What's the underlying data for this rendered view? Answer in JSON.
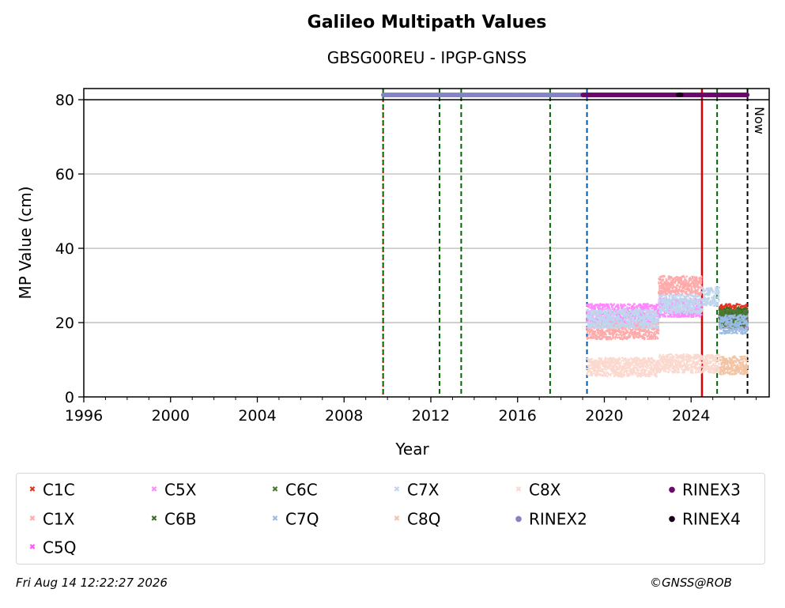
{
  "chart_data": {
    "type": "scatter",
    "title": "Galileo Multipath Values",
    "subtitle": "GBSG00REU - IPGP-GNSS",
    "xlabel": "Year",
    "ylabel": "MP Value (cm)",
    "xlim": [
      1996,
      2027.6
    ],
    "ylim": [
      0,
      83
    ],
    "x_ticks": [
      "1996",
      "2000",
      "2004",
      "2008",
      "2012",
      "2016",
      "2020",
      "2024"
    ],
    "y_ticks": [
      "0",
      "20",
      "40",
      "60",
      "80"
    ],
    "grid": "horizontal",
    "legend_position": "bottom",
    "now_label": "Now",
    "series": [
      {
        "name": "C1C",
        "color": "#e8301c",
        "marker": "x",
        "segments": [
          {
            "x": [
              2025.3,
              2026.6
            ],
            "y": 22.5
          }
        ]
      },
      {
        "name": "C1X",
        "color": "#ffaaaa",
        "marker": "x",
        "segments": [
          {
            "x": [
              2019.2,
              2022.5
            ],
            "y": 18
          },
          {
            "x": [
              2022.5,
              2024.5
            ],
            "y": 30
          }
        ]
      },
      {
        "name": "C5Q",
        "color": "#ff55ff",
        "marker": "x",
        "segments": [
          {
            "x": [
              2025.3,
              2026.6
            ],
            "y": 21
          }
        ]
      },
      {
        "name": "C5X",
        "color": "#ff88ff",
        "marker": "x",
        "segments": [
          {
            "x": [
              2019.2,
              2022.5
            ],
            "y": 22.5
          },
          {
            "x": [
              2022.5,
              2024.5
            ],
            "y": 24
          }
        ]
      },
      {
        "name": "C6B",
        "color": "#3a6e28",
        "marker": "x",
        "segments": [
          {
            "x": [
              2025.3,
              2026.6
            ],
            "y": 21.5
          }
        ]
      },
      {
        "name": "C6C",
        "color": "#4a7a30",
        "marker": "x",
        "segments": [
          {
            "x": [
              2025.3,
              2026.6
            ],
            "y": 21
          }
        ]
      },
      {
        "name": "C7Q",
        "color": "#99bbe6",
        "marker": "x",
        "segments": [
          {
            "x": [
              2025.3,
              2026.6
            ],
            "y": 19.5
          }
        ]
      },
      {
        "name": "C7X",
        "color": "#c0d6ee",
        "marker": "x",
        "segments": [
          {
            "x": [
              2019.2,
              2022.5
            ],
            "y": 21
          },
          {
            "x": [
              2022.5,
              2024.5
            ],
            "y": 25
          },
          {
            "x": [
              2024.5,
              2025.3
            ],
            "y": 27
          }
        ]
      },
      {
        "name": "C8Q",
        "color": "#f2c4a4",
        "marker": "x",
        "segments": [
          {
            "x": [
              2025.3,
              2026.6
            ],
            "y": 8.5
          }
        ]
      },
      {
        "name": "C8X",
        "color": "#fbd9cf",
        "marker": "x",
        "segments": [
          {
            "x": [
              2019.2,
              2022.5
            ],
            "y": 8
          },
          {
            "x": [
              2022.5,
              2025.3
            ],
            "y": 9
          }
        ]
      },
      {
        "name": "RINEX2",
        "color": "#8484c4",
        "marker": "o",
        "segments": [
          {
            "x": [
              2009.8,
              2019.0
            ],
            "y": 81.3
          }
        ]
      },
      {
        "name": "RINEX3",
        "color": "#6a0a6a",
        "marker": "o",
        "segments": [
          {
            "x": [
              2019.0,
              2026.6
            ],
            "y": 81.3
          }
        ]
      },
      {
        "name": "RINEX4",
        "color": "#1a001a",
        "marker": "o",
        "segments": [
          {
            "x": [
              2023.4,
              2023.55
            ],
            "y": 81.3
          }
        ]
      }
    ],
    "vertical_lines": [
      {
        "x": 2009.8,
        "color": "#cc0000",
        "style": "dotted"
      },
      {
        "x": 2009.8,
        "color": "#006600",
        "style": "dashed"
      },
      {
        "x": 2012.4,
        "color": "#006600",
        "style": "dashed"
      },
      {
        "x": 2013.4,
        "color": "#006600",
        "style": "dashed"
      },
      {
        "x": 2017.5,
        "color": "#006600",
        "style": "dashed"
      },
      {
        "x": 2019.2,
        "color": "#0055aa",
        "style": "dashed"
      },
      {
        "x": 2024.5,
        "color": "#dd0000",
        "style": "solid"
      },
      {
        "x": 2025.2,
        "color": "#006600",
        "style": "dashed"
      },
      {
        "x": 2026.6,
        "color": "#000000",
        "style": "dashed"
      }
    ],
    "horizontal_line": {
      "y": 80,
      "color": "#000000"
    }
  },
  "footer": {
    "timestamp": "Fri Aug 14 12:22:27 2026",
    "credit": "©GNSS@ROB"
  }
}
